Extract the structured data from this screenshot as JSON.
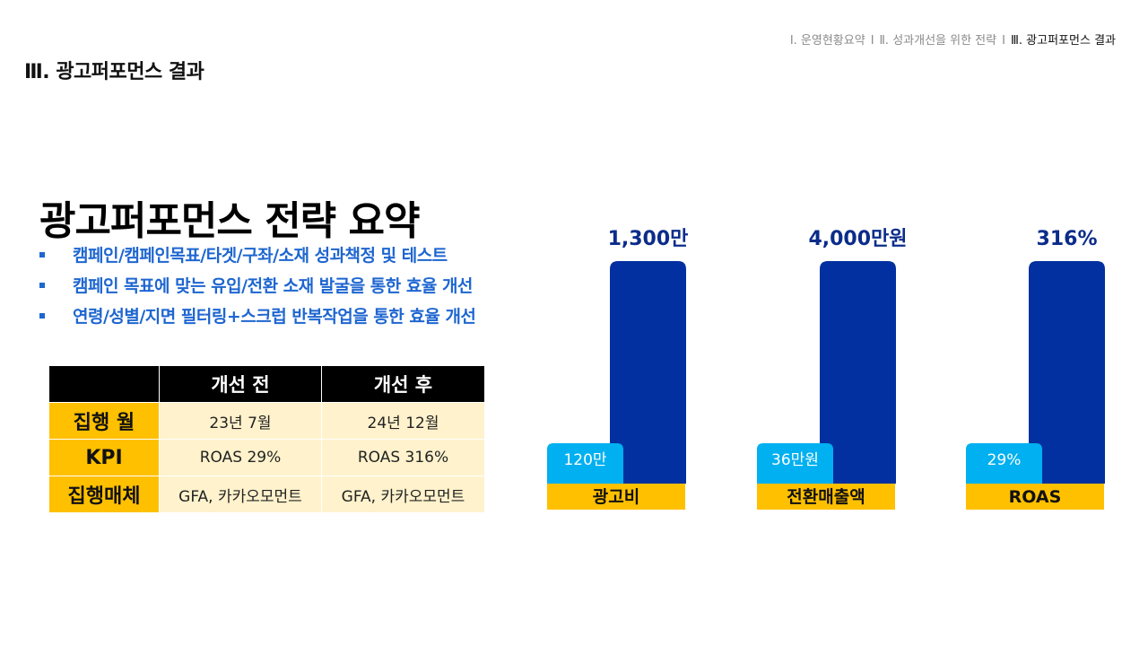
{
  "breadcrumb": {
    "item1": "Ⅰ. 운영현황요약",
    "item2": "Ⅱ. 성과개선을 위한 전략",
    "item3": "Ⅲ. 광고퍼포먼스 결과",
    "separator": "I"
  },
  "section_title": "Ⅲ. 광고퍼포먼스 결과",
  "main_title": "광고퍼포먼스 전략 요약",
  "bullets": [
    "캠페인/캠페인목표/타겟/구좌/소재 성과책정 및 테스트",
    "캠페인 목표에 맞는 유입/전환 소재 발굴을 통한 효율 개선",
    "연령/성별/지면 필터링+스크럽 반복작업을 통한 효율 개선"
  ],
  "table": {
    "headers": [
      "",
      "개선 전",
      "개선 후"
    ],
    "rows": [
      {
        "label": "집행 월",
        "before": "23년 7월",
        "after": "24년 12월"
      },
      {
        "label": "KPI",
        "before": "ROAS 29%",
        "after": "ROAS 316%"
      },
      {
        "label": "집행매체",
        "before": "GFA, 카카오모먼트",
        "after": "GFA, 카카오모먼트"
      }
    ]
  },
  "colors": {
    "after_bar": "#0230a0",
    "before_bar": "#00b0f0",
    "category_band": "#ffc000",
    "value_label": "#0b2c8a",
    "bullet_text": "#1e66d0"
  },
  "chart_data": {
    "type": "bar",
    "categories": [
      "광고비",
      "전환매출액",
      "ROAS"
    ],
    "series": [
      {
        "values": [
          120,
          36,
          29
        ],
        "labels": [
          "120만",
          "36만원",
          "29%"
        ]
      },
      {
        "values": [
          1300,
          4000,
          316
        ],
        "labels": [
          "1,300만",
          "4,000만원",
          "316%"
        ]
      }
    ],
    "note": "each category drawn on its own scale; before bar ~ fixed small height, after bar full height"
  }
}
